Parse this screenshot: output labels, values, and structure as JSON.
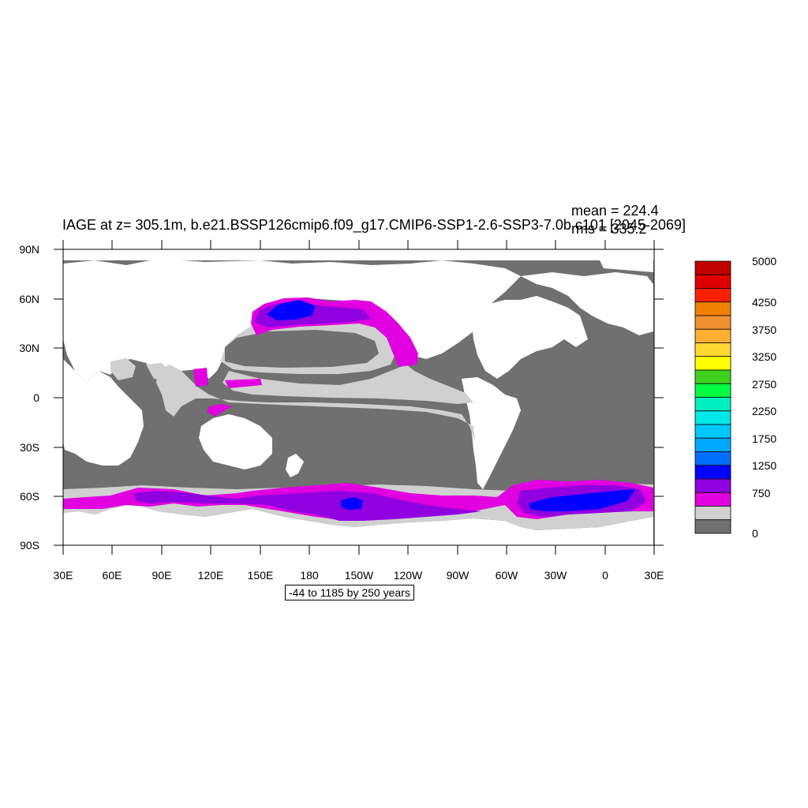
{
  "title": "IAGE at z= 305.1m, b.e21.BSSP126cmip6.f09_g17.CMIP6-SSP1-2.6-SSP3-7.0b.c101 [2045-2069]",
  "stats": {
    "mean": "mean = 224.4",
    "rms": "rms = 335.2"
  },
  "range_label": "-44 to 1185 by 250 years",
  "axes": {
    "lat_labels": [
      "90N",
      "60N",
      "30N",
      "0",
      "30S",
      "60S",
      "90S"
    ],
    "lon_labels": [
      "30E",
      "60E",
      "90E",
      "120E",
      "150E",
      "180",
      "150W",
      "120W",
      "90W",
      "60W",
      "30W",
      "0",
      "30E"
    ]
  },
  "colorbar": {
    "labels": [
      "5000",
      "4250",
      "3750",
      "3250",
      "2750",
      "2250",
      "1750",
      "1250",
      "750",
      "0"
    ],
    "colors": [
      "#c00000",
      "#e00000",
      "#ff2000",
      "#f08000",
      "#f09030",
      "#ffb030",
      "#ffd830",
      "#ffff00",
      "#40d020",
      "#00ff40",
      "#00f0c0",
      "#00e8e8",
      "#00c8ff",
      "#00a8ff",
      "#0070ff",
      "#0000ff",
      "#9000e0",
      "#e000e0",
      "#d0d0d0",
      "#707070"
    ]
  },
  "colors": {
    "land": "#ffffff",
    "age_low": "#707070",
    "age_250": "#d0d0d0",
    "age_500": "#e000e0",
    "age_750": "#9000e0",
    "age_1000": "#0000ff"
  }
}
